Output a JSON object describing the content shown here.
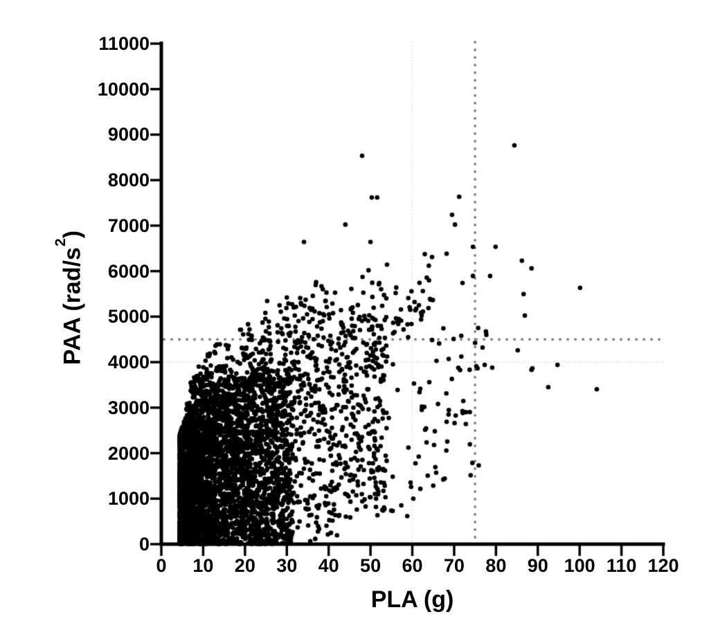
{
  "chart_data": {
    "type": "scatter",
    "title": "",
    "xlabel": "PLA (g)",
    "ylabel": "PAA (rad/s²)",
    "xlim": [
      0,
      120
    ],
    "ylim": [
      0,
      11000
    ],
    "x_ticks": [
      0,
      10,
      20,
      30,
      40,
      50,
      60,
      70,
      80,
      90,
      100,
      110,
      120
    ],
    "y_ticks": [
      0,
      1000,
      2000,
      3000,
      4000,
      5000,
      6000,
      7000,
      8000,
      9000,
      10000,
      11000
    ],
    "grid": false,
    "legend": "none",
    "marker": {
      "shape": "circle",
      "color": "#000000",
      "radius_px": 3.3
    },
    "axis_color": "#000000",
    "background_color": "#ffffff",
    "reference_lines": [
      {
        "axis": "y",
        "value": 4500,
        "style": "dotted-bold",
        "color": "#838383"
      },
      {
        "axis": "y",
        "value": 4000,
        "style": "dotted-fine",
        "color": "#c6c6c6"
      },
      {
        "axis": "x",
        "value": 75,
        "style": "dotted-bold",
        "color": "#838383"
      },
      {
        "axis": "x",
        "value": 60,
        "style": "dotted-fine",
        "color": "#c6c6c6"
      }
    ],
    "outlier_points": [
      [
        48.0,
        8535
      ],
      [
        84.4,
        8763
      ],
      [
        50.3,
        7618
      ],
      [
        51.6,
        7618
      ],
      [
        44.0,
        7023
      ],
      [
        34.1,
        6641
      ],
      [
        50.0,
        6641
      ],
      [
        71.2,
        7634
      ],
      [
        69.5,
        7237
      ],
      [
        70.2,
        7023
      ],
      [
        74.5,
        6534
      ],
      [
        79.9,
        6534
      ],
      [
        68.2,
        6382
      ],
      [
        74.5,
        5893
      ],
      [
        78.6,
        5893
      ],
      [
        37.0,
        5756
      ],
      [
        52.1,
        5740
      ],
      [
        72.0,
        5740
      ],
      [
        86.2,
        6229
      ],
      [
        88.5,
        6061
      ],
      [
        100.1,
        5634
      ],
      [
        86.6,
        5496
      ],
      [
        86.9,
        5023
      ],
      [
        77.6,
        4672
      ],
      [
        77.7,
        4600
      ],
      [
        76.8,
        4321
      ],
      [
        85.2,
        4260
      ],
      [
        94.7,
        3939
      ],
      [
        77.3,
        3939
      ],
      [
        79.1,
        3878
      ],
      [
        75.6,
        3863
      ],
      [
        88.7,
        3863
      ],
      [
        88.5,
        3832
      ],
      [
        92.5,
        3450
      ],
      [
        104.1,
        3405
      ],
      [
        42.0,
        195
      ],
      [
        55.3,
        730
      ],
      [
        58.8,
        616
      ],
      [
        65.2,
        2180
      ],
      [
        65.7,
        1570
      ],
      [
        65.0,
        1285
      ],
      [
        67.4,
        1420
      ],
      [
        68.2,
        2690
      ],
      [
        70.1,
        2660
      ],
      [
        72.8,
        2640
      ],
      [
        59.8,
        5557
      ],
      [
        56.1,
        4962
      ],
      [
        57.9,
        4718
      ],
      [
        52.0,
        5710
      ],
      [
        48.3,
        5527
      ],
      [
        36.9,
        5695
      ],
      [
        38.6,
        5603
      ],
      [
        36.1,
        5176
      ],
      [
        31.9,
        5023
      ],
      [
        38.7,
        5054
      ],
      [
        25.3,
        5344
      ],
      [
        30.0,
        5420
      ],
      [
        24.2,
        4870
      ],
      [
        27.8,
        4809
      ],
      [
        28.8,
        4641
      ],
      [
        43.0,
        4870
      ],
      [
        43.5,
        4763
      ],
      [
        45.3,
        5160
      ],
      [
        45.8,
        5084
      ],
      [
        47.2,
        4947
      ],
      [
        50.8,
        4947
      ],
      [
        73.7,
        3832
      ],
      [
        75.3,
        3909
      ]
    ],
    "dense_cloud": {
      "description": "Dense cloud of ~5000 head-impact data points; solid-black saturation near origin (PLA 4.5-25 g, PAA 0-2200 rad/s2) fanning up-right; empty lower-right region",
      "seed": 7,
      "x_min": 4.4,
      "lower_bound": {
        "x0": 34,
        "slope": 35
      },
      "upper_envelope": {
        "base": 2400,
        "scale": 600,
        "xshift": 3
      },
      "components": [
        {
          "name": "core",
          "count": 3300,
          "x_base": 4.4,
          "x_scale": 27,
          "x_exp": 2.2,
          "y_mode": "fill",
          "y_top_frac": 0.92,
          "t_exp": 1.15
        },
        {
          "name": "mid",
          "count": 1450,
          "x_base": 6.0,
          "x_scale": 48,
          "x_exp": 1.6,
          "y_mode": "fill",
          "y_top_frac": 1.0,
          "t_exp": 0.85
        },
        {
          "name": "upper",
          "count": 240,
          "x_base": 7.0,
          "x_scale": 58,
          "x_exp": 1.3,
          "y_mode": "above",
          "add_base": 300,
          "add_slope": 22,
          "t_exp": 1.7
        },
        {
          "name": "right",
          "count": 62,
          "x_base": 50.0,
          "x_scale": 26,
          "x_exp": 1.0,
          "y_mode": "band",
          "y_cap": 4900,
          "t_exp": 1.0
        }
      ]
    }
  },
  "axes": {
    "x_title": "PLA (g)",
    "y_title_prefix": "PAA (rad/s",
    "y_title_sup": "2",
    "y_title_suffix": ")"
  }
}
